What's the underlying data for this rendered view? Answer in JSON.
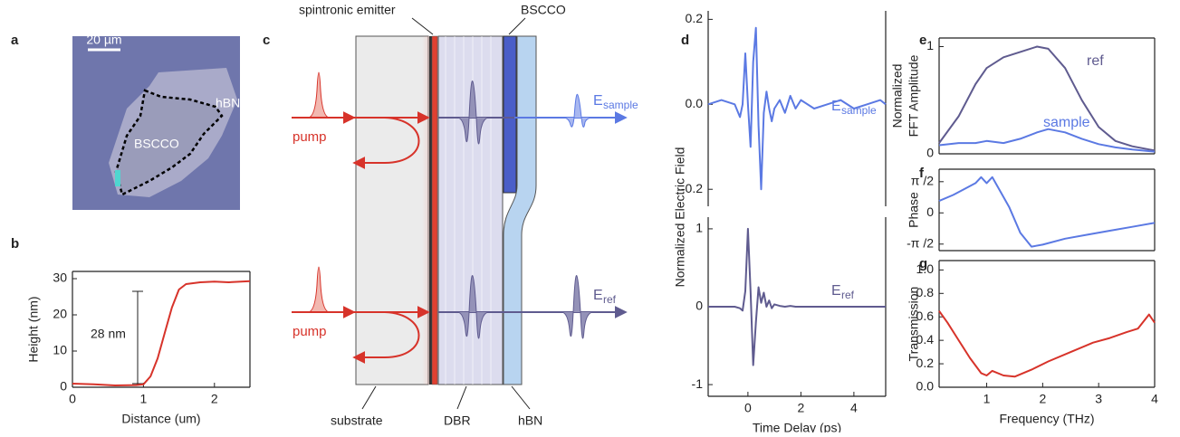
{
  "panels": [
    "a",
    "b",
    "c",
    "d",
    "e",
    "f",
    "g"
  ],
  "micrograph": {
    "scale_bar": "20 µm",
    "hbn": "hBN",
    "bscco": "BSCCO"
  },
  "diagram": {
    "spintronic_emitter": "spintronic emitter",
    "bscco": "BSCCO",
    "substrate": "substrate",
    "dbr": "DBR",
    "hbn": "hBN",
    "pump_top": "pump",
    "pump_bottom": "pump",
    "e_sample": "E",
    "e_sample_sub": "sample",
    "e_ref": "E",
    "e_ref_sub": "ref"
  },
  "chart_data": [
    {
      "type": "line",
      "x_label": "Distance (um)",
      "y_label": "Height (nm)",
      "annotation": "28 nm",
      "x": [
        0,
        0.3,
        0.6,
        0.9,
        1.0,
        1.1,
        1.2,
        1.3,
        1.4,
        1.5,
        1.6,
        1.8,
        2.0,
        2.2,
        2.5
      ],
      "series": [
        {
          "color": "#d7332a",
          "values": [
            1,
            0.8,
            0.5,
            0.6,
            0.8,
            3,
            8,
            15,
            22,
            27,
            28.5,
            29,
            29.2,
            29,
            29.3
          ]
        }
      ],
      "xlim": [
        0,
        2.5
      ],
      "xticks": [
        0,
        1,
        2
      ],
      "ylim": [
        0,
        32
      ],
      "yticks": [
        0,
        10,
        20,
        30
      ]
    },
    {
      "type": "line",
      "y_label": "Normalized Electric Field",
      "x": [
        -1.5,
        -1,
        -0.5,
        -0.3,
        -0.2,
        -0.1,
        0,
        0.1,
        0.2,
        0.3,
        0.4,
        0.5,
        0.6,
        0.7,
        0.8,
        0.9,
        1.0,
        1.2,
        1.4,
        1.6,
        1.8,
        2.0,
        2.5,
        3,
        3.5,
        4,
        4.5,
        5,
        5.2
      ],
      "series": [
        {
          "name": "E",
          "name_sub": "sample",
          "color": "#5b79e3",
          "values": [
            0,
            0.01,
            0,
            -0.03,
            0,
            0.12,
            0,
            -0.1,
            0.1,
            0.18,
            -0.05,
            -0.2,
            -0.02,
            0.03,
            -0.01,
            -0.04,
            -0.01,
            0.01,
            -0.02,
            0.02,
            -0.01,
            0.01,
            -0.01,
            0,
            0.01,
            -0.01,
            0,
            0.01,
            0
          ]
        }
      ],
      "xlim": [
        -1.5,
        5.2
      ],
      "ylim": [
        -0.24,
        0.22
      ],
      "yticks": [
        {
          "value": -0.2,
          "label": "-0.2"
        },
        {
          "value": 0,
          "label": "0.0"
        },
        0.2
      ]
    },
    {
      "type": "line",
      "x_label": "Time Delay (ps)",
      "x": [
        -1.5,
        -1,
        -0.5,
        -0.3,
        -0.2,
        -0.1,
        0,
        0.1,
        0.2,
        0.3,
        0.4,
        0.5,
        0.6,
        0.7,
        0.8,
        0.9,
        1.0,
        1.2,
        1.4,
        1.6,
        1.8,
        2.0,
        2.5,
        3,
        3.5,
        4,
        4.5,
        5,
        5.2
      ],
      "series": [
        {
          "name": "E",
          "name_sub": "ref",
          "color": "#5f5b8f",
          "values": [
            0,
            0,
            0,
            -0.02,
            -0.05,
            0.2,
            1.0,
            0.2,
            -0.75,
            -0.2,
            0.25,
            0.05,
            0.18,
            0,
            0.08,
            -0.02,
            0.03,
            0.01,
            0,
            0.01,
            0,
            0,
            0,
            0,
            0,
            0,
            0,
            0,
            0
          ]
        }
      ],
      "xlim": [
        -1.5,
        5.2
      ],
      "xticks": [
        0,
        2,
        4
      ],
      "ylim": [
        -1.15,
        1.15
      ],
      "yticks": [
        -1,
        0,
        1
      ]
    },
    {
      "type": "line",
      "y_label": [
        "Normalized",
        "FFT Amplitude"
      ],
      "x": [
        0.15,
        0.5,
        0.8,
        1.0,
        1.3,
        1.6,
        1.9,
        2.1,
        2.4,
        2.7,
        3.0,
        3.3,
        3.6,
        4.0
      ],
      "series": [
        {
          "name": "ref",
          "color": "#5f5b8f",
          "values": [
            0.1,
            0.35,
            0.65,
            0.8,
            0.9,
            0.95,
            1.0,
            0.98,
            0.8,
            0.5,
            0.25,
            0.12,
            0.07,
            0.03
          ]
        },
        {
          "name": "sample",
          "color": "#5b79e3",
          "values": [
            0.08,
            0.1,
            0.1,
            0.12,
            0.1,
            0.14,
            0.2,
            0.23,
            0.2,
            0.14,
            0.09,
            0.06,
            0.04,
            0.02
          ]
        }
      ],
      "xlim": [
        0.15,
        4
      ],
      "ylim": [
        0,
        1.08
      ],
      "yticks": [
        0,
        1
      ]
    },
    {
      "type": "line",
      "y_label": "Phase",
      "x": [
        0.15,
        0.4,
        0.6,
        0.8,
        0.9,
        1.0,
        1.1,
        1.2,
        1.4,
        1.6,
        1.8,
        2.0,
        2.4,
        2.8,
        3.2,
        3.6,
        4.0
      ],
      "series": [
        {
          "color": "#5b79e3",
          "values": [
            0.6,
            0.9,
            1.2,
            1.5,
            1.8,
            1.5,
            1.8,
            1.3,
            0.3,
            -1.0,
            -1.7,
            -1.6,
            -1.3,
            -1.1,
            -0.9,
            -0.7,
            -0.5
          ]
        }
      ],
      "xlim": [
        0.15,
        4
      ],
      "ylim": [
        -1.9,
        2.2
      ],
      "yticks": [
        {
          "value": 1.5708,
          "label": "π /2"
        },
        0,
        {
          "value": -1.5708,
          "label": "-π /2"
        }
      ]
    },
    {
      "type": "line",
      "y_label": "Transmission",
      "x_label": "Frequency (THz)",
      "x": [
        0.15,
        0.3,
        0.5,
        0.7,
        0.9,
        1.0,
        1.1,
        1.3,
        1.5,
        1.8,
        2.1,
        2.5,
        2.9,
        3.2,
        3.5,
        3.7,
        3.9,
        4.0
      ],
      "series": [
        {
          "color": "#d7332a",
          "values": [
            0.65,
            0.55,
            0.4,
            0.25,
            0.12,
            0.1,
            0.14,
            0.1,
            0.09,
            0.15,
            0.22,
            0.3,
            0.38,
            0.42,
            0.47,
            0.5,
            0.62,
            0.55
          ]
        }
      ],
      "xlim": [
        0.15,
        4
      ],
      "xticks": [
        1,
        2,
        3,
        4
      ],
      "ylim": [
        0,
        1.08
      ],
      "yticks": [
        {
          "value": 0,
          "label": "0.0"
        },
        {
          "value": 0.2,
          "label": "0.2"
        },
        {
          "value": 0.4,
          "label": "0.4"
        },
        {
          "value": 0.6,
          "label": "0.6"
        },
        {
          "value": 0.8,
          "label": "0.8"
        },
        {
          "value": 1,
          "label": "1.0"
        }
      ]
    }
  ]
}
